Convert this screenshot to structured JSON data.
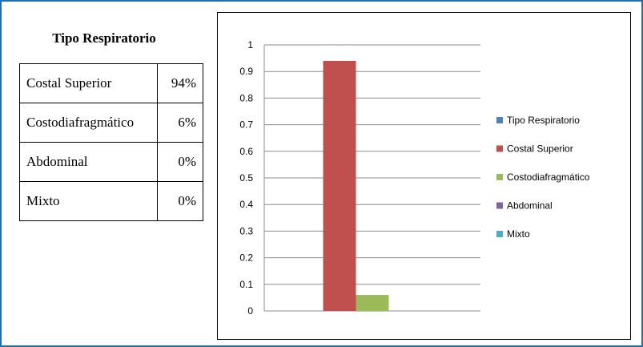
{
  "table": {
    "title": "Tipo Respiratorio",
    "rows": [
      {
        "label": "Costal Superior",
        "value": "94%"
      },
      {
        "label": "Costodiafragmático",
        "value": "6%"
      },
      {
        "label": "Abdominal",
        "value": "0%"
      },
      {
        "label": "Mixto",
        "value": "0%"
      }
    ]
  },
  "chart_data": {
    "type": "bar",
    "categories": [
      ""
    ],
    "series": [
      {
        "name": "Tipo Respiratorio",
        "values": [
          0
        ],
        "color": "#4f81bd"
      },
      {
        "name": "Costal Superior",
        "values": [
          0.94
        ],
        "color": "#c0504d"
      },
      {
        "name": "Costodiafragmático",
        "values": [
          0.06
        ],
        "color": "#9bbb59"
      },
      {
        "name": "Abdominal",
        "values": [
          0
        ],
        "color": "#8064a2"
      },
      {
        "name": "Mixto",
        "values": [
          0
        ],
        "color": "#4bacc6"
      }
    ],
    "yticks": [
      "0",
      "0.1",
      "0.2",
      "0.3",
      "0.4",
      "0.5",
      "0.6",
      "0.7",
      "0.8",
      "0.9",
      "1"
    ],
    "ylim": [
      0,
      1
    ],
    "grid": true,
    "legend": "right"
  }
}
